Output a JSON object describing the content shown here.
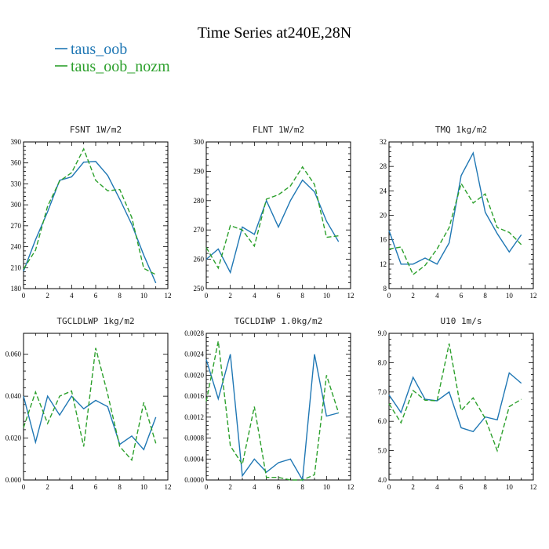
{
  "title": "Time Series at240E,28N",
  "legend": [
    {
      "label": "taus_oob",
      "color": "#1f77b4",
      "dash": "solid"
    },
    {
      "label": "taus_oob_nozm",
      "color": "#2ca02c",
      "dash": "dashed"
    }
  ],
  "chart_data": [
    {
      "type": "line",
      "title": "FSNT   1W/m2",
      "x": [
        0,
        1,
        2,
        3,
        4,
        5,
        6,
        7,
        8,
        9,
        10,
        11
      ],
      "xticks": [
        0,
        2,
        4,
        6,
        8,
        10,
        12
      ],
      "xlim": [
        0,
        12
      ],
      "ylim": [
        180,
        390
      ],
      "yticks": [
        "180",
        "210",
        "240",
        "270",
        "300",
        "330",
        "360",
        "390"
      ],
      "series": [
        {
          "name": "taus_oob",
          "values": [
            205,
            250,
            290,
            335,
            340,
            361,
            362,
            342,
            308,
            272,
            228,
            188
          ]
        },
        {
          "name": "taus_oob_nozm",
          "values": [
            208,
            235,
            298,
            334,
            346,
            380,
            335,
            320,
            322,
            282,
            209,
            200
          ]
        }
      ]
    },
    {
      "type": "line",
      "title": "FLNT   1W/m2",
      "x": [
        0,
        1,
        2,
        3,
        4,
        5,
        6,
        7,
        8,
        9,
        10,
        11
      ],
      "xticks": [
        0,
        2,
        4,
        6,
        8,
        10,
        12
      ],
      "xlim": [
        0,
        12
      ],
      "ylim": [
        250,
        300
      ],
      "yticks": [
        "250",
        "260",
        "270",
        "280",
        "290",
        "300"
      ],
      "series": [
        {
          "name": "taus_oob",
          "values": [
            260,
            263.5,
            255.5,
            271,
            268.5,
            280,
            271,
            280,
            287,
            283,
            273,
            266
          ]
        },
        {
          "name": "taus_oob_nozm",
          "values": [
            264,
            257,
            271.5,
            270,
            264.5,
            280.5,
            282,
            285,
            291.5,
            285.5,
            267.5,
            268
          ]
        }
      ]
    },
    {
      "type": "line",
      "title": "TMQ   1kg/m2",
      "x": [
        0,
        1,
        2,
        3,
        4,
        5,
        6,
        7,
        8,
        9,
        10,
        11
      ],
      "xticks": [
        0,
        2,
        4,
        6,
        8,
        10,
        12
      ],
      "xlim": [
        0,
        12
      ],
      "ylim": [
        8,
        32
      ],
      "yticks": [
        "8",
        "12",
        "16",
        "20",
        "24",
        "28",
        "32"
      ],
      "series": [
        {
          "name": "taus_oob",
          "values": [
            17.5,
            12,
            12,
            13,
            12,
            15.5,
            26.5,
            30.2,
            20.5,
            17,
            14,
            16.8
          ]
        },
        {
          "name": "taus_oob_nozm",
          "values": [
            14.5,
            14.8,
            10.3,
            11.8,
            14.5,
            18,
            25.2,
            22,
            23.5,
            18,
            17.2,
            15.2
          ]
        }
      ]
    },
    {
      "type": "line",
      "title": "TGCLDLWP   1kg/m2",
      "x": [
        0,
        1,
        2,
        3,
        4,
        5,
        6,
        7,
        8,
        9,
        10,
        11
      ],
      "xticks": [
        0,
        2,
        4,
        6,
        8,
        10,
        12
      ],
      "xlim": [
        0,
        12
      ],
      "ylim": [
        0,
        0.07
      ],
      "yticks": [
        "0.000",
        "0.020",
        "0.040",
        "0.060"
      ],
      "ytick_values": [
        0,
        0.02,
        0.04,
        0.06
      ],
      "series": [
        {
          "name": "taus_oob",
          "values": [
            0.04,
            0.018,
            0.04,
            0.031,
            0.04,
            0.034,
            0.038,
            0.035,
            0.017,
            0.021,
            0.0145,
            0.03
          ]
        },
        {
          "name": "taus_oob_nozm",
          "values": [
            0.025,
            0.042,
            0.027,
            0.04,
            0.0425,
            0.016,
            0.063,
            0.041,
            0.016,
            0.0095,
            0.037,
            0.0175
          ]
        }
      ]
    },
    {
      "type": "line",
      "title": "TGCLDIWP   1.0kg/m2",
      "x": [
        0,
        1,
        2,
        3,
        4,
        5,
        6,
        7,
        8,
        9,
        10,
        11
      ],
      "xticks": [
        0,
        2,
        4,
        6,
        8,
        10,
        12
      ],
      "xlim": [
        0,
        12
      ],
      "ylim": [
        0,
        0.0028
      ],
      "yticks": [
        "0.0000",
        "0.0004",
        "0.0008",
        "0.0012",
        "0.0016",
        "0.0020",
        "0.0024",
        "0.0028"
      ],
      "ytick_values": [
        0,
        0.0004,
        0.0008,
        0.0012,
        0.0016,
        0.002,
        0.0024,
        0.0028
      ],
      "series": [
        {
          "name": "taus_oob",
          "values": [
            0.0023,
            0.00155,
            0.0024,
            8e-05,
            0.0004,
            0.00015,
            0.00033,
            0.0004,
            0.0,
            0.0024,
            0.00122,
            0.00128
          ]
        },
        {
          "name": "taus_oob_nozm",
          "values": [
            0.0015,
            0.00265,
            0.00065,
            0.0003,
            0.0014,
            5e-05,
            5e-05,
            0.0,
            0.0,
            0.0001,
            0.002,
            0.00128
          ]
        }
      ]
    },
    {
      "type": "line",
      "title": "U10   1m/s",
      "x": [
        0,
        1,
        2,
        3,
        4,
        5,
        6,
        7,
        8,
        9,
        10,
        11
      ],
      "xticks": [
        0,
        2,
        4,
        6,
        8,
        10,
        12
      ],
      "xlim": [
        0,
        12
      ],
      "ylim": [
        4,
        9
      ],
      "yticks": [
        "4.0",
        "5.0",
        "6.0",
        "7.0",
        "8.0",
        "9.0"
      ],
      "series": [
        {
          "name": "taus_oob",
          "values": [
            6.9,
            6.3,
            7.5,
            6.75,
            6.7,
            7.0,
            5.78,
            5.65,
            6.15,
            6.05,
            7.65,
            7.3
          ]
        },
        {
          "name": "taus_oob_nozm",
          "values": [
            6.6,
            5.95,
            7.05,
            6.72,
            6.7,
            8.65,
            6.37,
            6.8,
            6.1,
            5.0,
            6.5,
            6.75
          ]
        }
      ]
    }
  ]
}
